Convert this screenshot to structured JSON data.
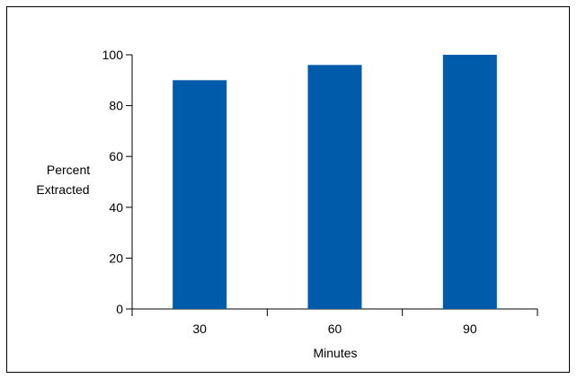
{
  "chart_data": {
    "type": "bar",
    "categories": [
      "30",
      "60",
      "90"
    ],
    "values": [
      90,
      96,
      100
    ],
    "title": "",
    "xlabel": "Minutes",
    "ylabel_lines": [
      "Percent",
      "Extracted"
    ],
    "ylim": [
      0,
      100
    ],
    "yticks": [
      "0",
      "20",
      "40",
      "60",
      "80",
      "100"
    ],
    "bar_color": "#005bab",
    "grid": false,
    "legend": "none"
  }
}
